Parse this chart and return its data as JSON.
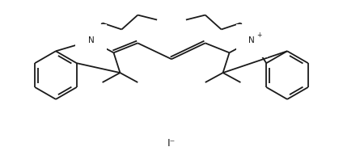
{
  "bg_color": "#ffffff",
  "line_color": "#1a1a1a",
  "lw": 1.3,
  "figsize": [
    4.24,
    2.08
  ],
  "dpi": 100,
  "iodide_text": "I⁻"
}
